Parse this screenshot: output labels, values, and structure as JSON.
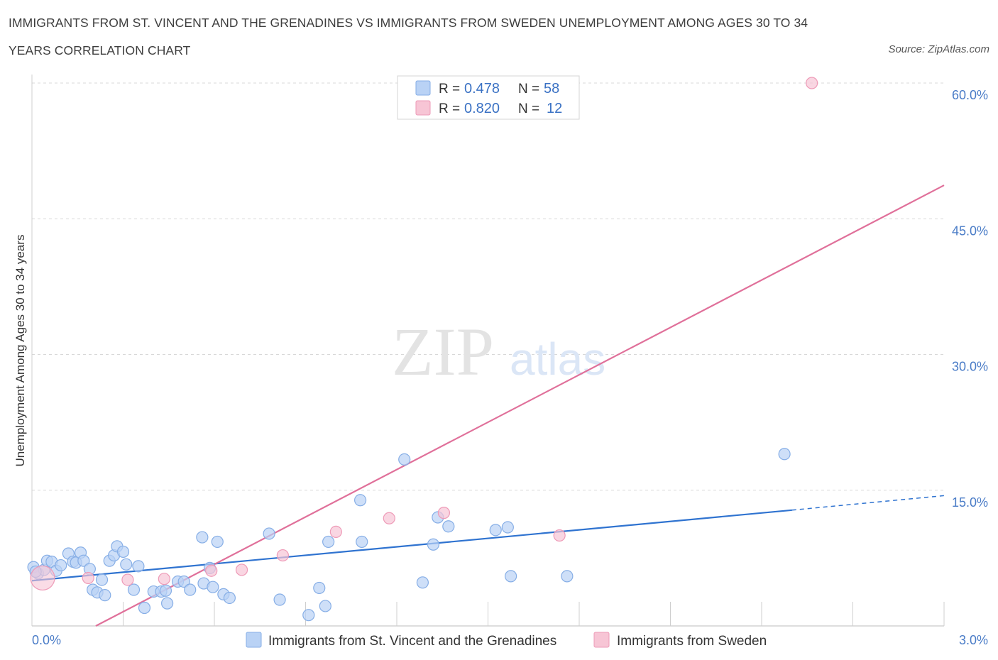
{
  "header": {
    "title_line1": "IMMIGRANTS FROM ST. VINCENT AND THE GRENADINES VS IMMIGRANTS FROM SWEDEN UNEMPLOYMENT AMONG AGES 30 TO 34",
    "title_line2": "YEARS CORRELATION CHART",
    "source": "Source: ZipAtlas.com"
  },
  "watermark": {
    "zip": "ZIP",
    "atlas": "atlas"
  },
  "legend": {
    "series1": {
      "r_label": "R =",
      "r_value": "0.478",
      "n_label": "N =",
      "n_value": "58"
    },
    "series2": {
      "r_label": "R =",
      "r_value": "0.820",
      "n_label": "N =",
      "n_value": "12"
    }
  },
  "bottom_legend": {
    "series1_label": "Immigrants from St. Vincent and the Grenadines",
    "series2_label": "Immigrants from Sweden"
  },
  "colors": {
    "series1_fill": "#b9d2f5",
    "series1_stroke": "#86aee6",
    "series1_line": "#2f73d0",
    "series2_fill": "#f7c5d5",
    "series2_stroke": "#ee9ab7",
    "series2_line": "#e0709a",
    "grid": "#d8d8d8",
    "tick_text": "#4a7cc7"
  },
  "chart_data": {
    "type": "scatter",
    "title": "IMMIGRANTS FROM ST. VINCENT AND THE GRENADINES VS IMMIGRANTS FROM SWEDEN UNEMPLOYMENT AMONG AGES 30 TO 34 YEARS CORRELATION CHART",
    "xlabel": "",
    "ylabel": "Unemployment Among Ages 30 to 34 years",
    "xlim": [
      0,
      3.0
    ],
    "ylim": [
      0,
      60
    ],
    "x_tick_labels": [
      {
        "value": 0,
        "label": "0.0%"
      },
      {
        "value": 3.0,
        "label": "3.0%"
      }
    ],
    "y_tick_labels": [
      {
        "value": 15,
        "label": "15.0%"
      },
      {
        "value": 30,
        "label": "30.0%"
      },
      {
        "value": 45,
        "label": "45.0%"
      },
      {
        "value": 60,
        "label": "60.0%"
      }
    ],
    "grid": true,
    "legend_position": "top-center",
    "series": [
      {
        "name": "Immigrants from St. Vincent and the Grenadines",
        "R": 0.478,
        "N": 58,
        "trend": {
          "x0": 0.0,
          "y0": 5.0,
          "x1": 2.5,
          "y1": 12.8,
          "dashed_to_x": 3.0,
          "dashed_to_y": 14.4
        },
        "points": [
          [
            0.005,
            6.5
          ],
          [
            0.02,
            5.8
          ],
          [
            0.04,
            6.2
          ],
          [
            0.05,
            7.2
          ],
          [
            0.065,
            7.1
          ],
          [
            0.08,
            6.1
          ],
          [
            0.095,
            6.7
          ],
          [
            0.12,
            8.0
          ],
          [
            0.135,
            7.1
          ],
          [
            0.145,
            7.0
          ],
          [
            0.16,
            8.1
          ],
          [
            0.17,
            7.2
          ],
          [
            0.19,
            6.3
          ],
          [
            0.2,
            4.0
          ],
          [
            0.215,
            3.7
          ],
          [
            0.23,
            5.1
          ],
          [
            0.24,
            3.4
          ],
          [
            0.255,
            7.2
          ],
          [
            0.27,
            7.8
          ],
          [
            0.28,
            8.8
          ],
          [
            0.3,
            8.2
          ],
          [
            0.31,
            6.8
          ],
          [
            0.335,
            4.0
          ],
          [
            0.35,
            6.6
          ],
          [
            0.37,
            2.0
          ],
          [
            0.4,
            3.8
          ],
          [
            0.425,
            3.8
          ],
          [
            0.44,
            3.9
          ],
          [
            0.445,
            2.5
          ],
          [
            0.48,
            4.9
          ],
          [
            0.5,
            4.9
          ],
          [
            0.52,
            4.0
          ],
          [
            0.56,
            9.8
          ],
          [
            0.565,
            4.7
          ],
          [
            0.585,
            6.4
          ],
          [
            0.595,
            4.3
          ],
          [
            0.61,
            9.3
          ],
          [
            0.63,
            3.5
          ],
          [
            0.65,
            3.1
          ],
          [
            0.78,
            10.2
          ],
          [
            0.815,
            2.9
          ],
          [
            0.91,
            1.2
          ],
          [
            0.945,
            4.2
          ],
          [
            0.965,
            2.2
          ],
          [
            0.975,
            9.3
          ],
          [
            1.08,
            13.9
          ],
          [
            1.085,
            9.3
          ],
          [
            1.225,
            18.4
          ],
          [
            1.285,
            4.8
          ],
          [
            1.32,
            9.0
          ],
          [
            1.335,
            12.0
          ],
          [
            1.37,
            11.0
          ],
          [
            1.525,
            10.6
          ],
          [
            1.565,
            10.9
          ],
          [
            1.575,
            5.5
          ],
          [
            1.76,
            5.5
          ],
          [
            2.475,
            19.0
          ],
          [
            0.012,
            6.0
          ]
        ]
      },
      {
        "name": "Immigrants from Sweden",
        "R": 0.82,
        "N": 12,
        "trend": {
          "x0": 0.21,
          "y0": 0.0,
          "x1": 3.0,
          "y1": 48.7
        },
        "points": [
          [
            0.035,
            5.3
          ],
          [
            0.185,
            5.3
          ],
          [
            0.315,
            5.1
          ],
          [
            0.435,
            5.2
          ],
          [
            0.59,
            6.1
          ],
          [
            0.69,
            6.2
          ],
          [
            0.825,
            7.8
          ],
          [
            1.0,
            10.4
          ],
          [
            1.175,
            11.9
          ],
          [
            1.355,
            12.5
          ],
          [
            1.735,
            10.0
          ],
          [
            2.565,
            60.0
          ]
        ]
      }
    ]
  }
}
